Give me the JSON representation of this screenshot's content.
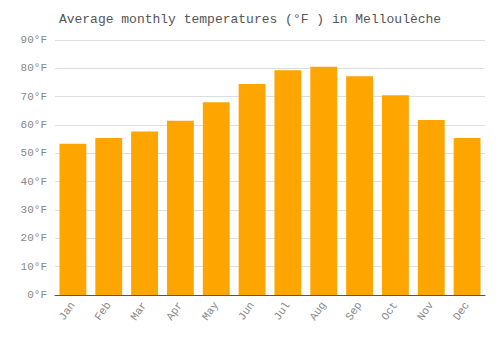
{
  "chart_data": {
    "type": "bar",
    "title": "Average monthly temperatures (°F ) in Melloulèche",
    "categories": [
      "Jan",
      "Feb",
      "Mar",
      "Apr",
      "May",
      "Jun",
      "Jul",
      "Aug",
      "Sep",
      "Oct",
      "Nov",
      "Dec"
    ],
    "values": [
      53.4,
      55.4,
      57.7,
      61.5,
      68.0,
      74.5,
      79.3,
      80.6,
      77.2,
      70.5,
      61.8,
      55.4
    ],
    "color": "#FFA500",
    "ylim": [
      0,
      90
    ],
    "yticks": [
      {
        "value": 0,
        "label": "0°F"
      },
      {
        "value": 10,
        "label": "10°F"
      },
      {
        "value": 20,
        "label": "20°F"
      },
      {
        "value": 30,
        "label": "30°F"
      },
      {
        "value": 40,
        "label": "40°F"
      },
      {
        "value": 50,
        "label": "50°F"
      },
      {
        "value": 60,
        "label": "60°F"
      },
      {
        "value": 70,
        "label": "70°F"
      },
      {
        "value": 80,
        "label": "80°F"
      },
      {
        "value": 90,
        "label": "90°F"
      }
    ],
    "grid": true
  }
}
